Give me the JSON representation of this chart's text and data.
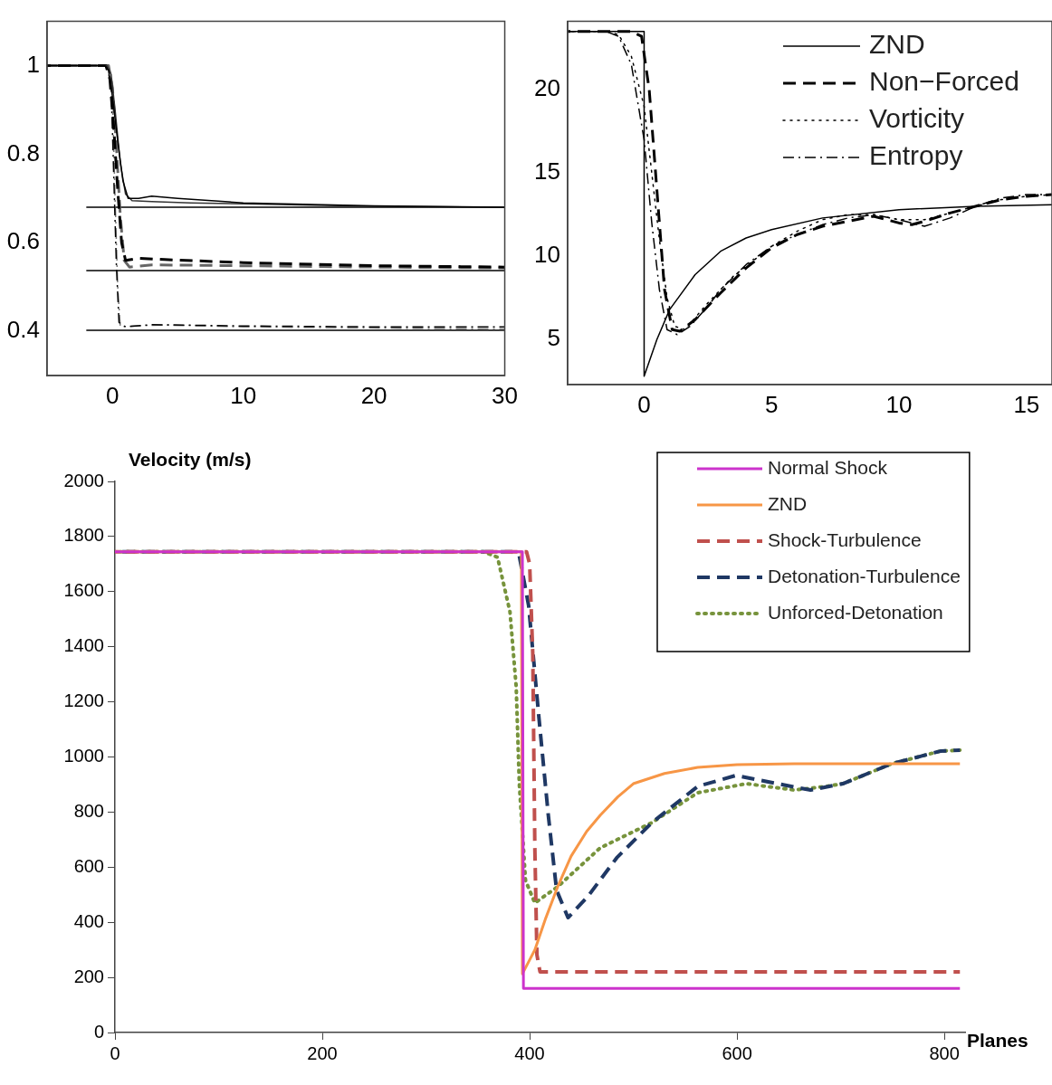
{
  "chart_data": [
    {
      "type": "line",
      "xlim": [
        -5,
        30
      ],
      "xticks": [
        0,
        10,
        20,
        30
      ],
      "ylim": [
        0.3,
        1.1
      ],
      "yticks": [
        0.4,
        0.6,
        0.8,
        1
      ],
      "series": [
        {
          "color": "#000000",
          "line_style": "solid",
          "x": [
            -5,
            -0.6,
            -0.3,
            0,
            0.4,
            0.8,
            1.2,
            2,
            3,
            5,
            10,
            20,
            30
          ],
          "values": [
            1,
            1,
            0.99,
            0.93,
            0.83,
            0.74,
            0.7,
            0.7,
            0.705,
            0.7,
            0.69,
            0.683,
            0.68
          ]
        },
        {
          "color": "#333333",
          "line_style": "solid",
          "x": [
            -5,
            -0.4,
            -0.1,
            0.2,
            0.6,
            1,
            1.5,
            3,
            6,
            10,
            20,
            30
          ],
          "values": [
            1,
            1,
            0.98,
            0.9,
            0.78,
            0.71,
            0.695,
            0.693,
            0.69,
            0.688,
            0.682,
            0.68
          ]
        },
        {
          "color": "#000000",
          "line_style": "dashed",
          "x": [
            -5,
            -0.5,
            -0.2,
            0.1,
            0.4,
            0.7,
            1,
            2,
            4,
            10,
            20,
            30
          ],
          "values": [
            1,
            1,
            0.97,
            0.86,
            0.72,
            0.6,
            0.56,
            0.565,
            0.562,
            0.555,
            0.548,
            0.545
          ]
        },
        {
          "color": "#666666",
          "line_style": "dashed",
          "x": [
            -5,
            -0.3,
            0,
            0.3,
            0.6,
            0.9,
            1.3,
            3,
            10,
            20,
            30
          ],
          "values": [
            1,
            1,
            0.95,
            0.82,
            0.66,
            0.56,
            0.545,
            0.55,
            0.548,
            0.545,
            0.543
          ]
        },
        {
          "color": "#000000",
          "line_style": "dashdot",
          "x": [
            -5,
            -0.4,
            -0.1,
            0.1,
            0.3,
            0.5,
            1,
            3,
            10,
            20,
            30
          ],
          "values": [
            1,
            1,
            0.95,
            0.75,
            0.55,
            0.42,
            0.41,
            0.415,
            0.412,
            0.41,
            0.41
          ]
        },
        {
          "color": "#777777",
          "line_style": "dashdot",
          "x": [
            -5,
            -0.3,
            0,
            0.2,
            0.4,
            0.6,
            1.5,
            4,
            10,
            30
          ],
          "values": [
            1,
            1,
            0.93,
            0.7,
            0.5,
            0.41,
            0.412,
            0.414,
            0.41,
            0.405
          ]
        },
        {
          "color": "#000000",
          "line_style": "solid",
          "x": [
            -2,
            30
          ],
          "values": [
            0.68,
            0.68
          ]
        },
        {
          "color": "#000000",
          "line_style": "solid",
          "x": [
            -2,
            30
          ],
          "values": [
            0.537,
            0.537
          ]
        },
        {
          "color": "#000000",
          "line_style": "solid",
          "x": [
            -2,
            30
          ],
          "values": [
            0.402,
            0.402
          ]
        }
      ]
    },
    {
      "type": "line",
      "xlim": [
        -3,
        16
      ],
      "xticks": [
        0,
        5,
        10,
        15
      ],
      "ylim": [
        2.3,
        24.1
      ],
      "yticks": [
        5,
        10,
        15,
        20
      ],
      "legend": "top right",
      "series": [
        {
          "name": "ZND",
          "color": "#000000",
          "line_style": "solid",
          "x": [
            -3,
            0,
            0,
            0.5,
            1,
            2,
            3,
            4,
            5,
            7,
            10,
            13,
            16
          ],
          "values": [
            23.5,
            23.5,
            2.8,
            5,
            6.8,
            8.9,
            10.3,
            11.1,
            11.6,
            12.3,
            12.8,
            13,
            13.1
          ]
        },
        {
          "name": "Non−Forced",
          "color": "#000000",
          "line_style": "dashed",
          "x": [
            -3,
            -0.5,
            -0.1,
            0.2,
            0.5,
            0.8,
            1.1,
            1.4,
            2,
            3,
            4,
            5,
            6,
            7,
            8,
            9,
            10,
            10.5,
            11,
            12,
            13,
            14,
            15,
            16
          ],
          "values": [
            23.5,
            23.5,
            23.2,
            20,
            14,
            8,
            5.6,
            5.5,
            6.2,
            7.8,
            9.3,
            10.5,
            11.3,
            11.8,
            12.1,
            12.4,
            12,
            11.9,
            12.1,
            12.6,
            13,
            13.4,
            13.6,
            13.7
          ]
        },
        {
          "name": "Vorticity",
          "color": "#000000",
          "line_style": "dotted",
          "x": [
            -3,
            -1.5,
            -1,
            -0.5,
            0,
            0.3,
            0.6,
            0.9,
            1.2,
            1.6,
            2.5,
            3.5,
            5,
            6,
            7,
            8,
            9,
            10,
            11,
            12,
            13,
            14,
            15,
            16
          ],
          "values": [
            23.5,
            23.5,
            23.3,
            22,
            19,
            15,
            11,
            7.5,
            5.8,
            5.6,
            7.2,
            8.8,
            10.6,
            11.5,
            12.2,
            12.5,
            12.5,
            12.2,
            12.2,
            12.6,
            13,
            13.4,
            13.6,
            13.7
          ]
        },
        {
          "name": "Entropy",
          "color": "#000000",
          "line_style": "dashdot",
          "x": [
            -3,
            -1.5,
            -1,
            -0.5,
            0,
            0.3,
            0.6,
            0.9,
            1.3,
            1.8,
            2.5,
            3,
            4,
            5,
            6,
            7,
            8,
            9,
            10,
            11,
            12,
            13,
            14,
            15,
            16
          ],
          "values": [
            23.5,
            23.5,
            23.2,
            21.5,
            17,
            12,
            8,
            5.6,
            5.3,
            5.8,
            7,
            8,
            9.5,
            10.6,
            11.3,
            11.9,
            12.3,
            12.5,
            12.2,
            11.8,
            12.3,
            13,
            13.5,
            13.7,
            13.7
          ]
        }
      ]
    },
    {
      "type": "line",
      "ylabel": "Velocity (m/s)",
      "xlabel": "Planes",
      "xlim": [
        0,
        820
      ],
      "xticks": [
        0,
        200,
        400,
        600,
        800
      ],
      "ylim": [
        0,
        2000
      ],
      "yticks": [
        0,
        200,
        400,
        600,
        800,
        1000,
        1200,
        1400,
        1600,
        1800,
        2000
      ],
      "legend": "top right",
      "series": [
        {
          "name": "Normal Shock",
          "color": "#cc33cc",
          "line_style": "solid",
          "x": [
            0,
            393,
            394,
            815
          ],
          "values": [
            1745,
            1745,
            160,
            160
          ]
        },
        {
          "name": "ZND",
          "color": "#f79646",
          "line_style": "solid",
          "x": [
            0,
            392,
            393,
            405,
            415,
            427,
            440,
            455,
            468,
            485,
            500,
            530,
            562,
            600,
            655,
            815
          ],
          "values": [
            1745,
            1745,
            213,
            300,
            410,
            529,
            640,
            730,
            788,
            855,
            903,
            940,
            962,
            972,
            975,
            975
          ]
        },
        {
          "name": "Shock-Turbulence",
          "color": "#c0504d",
          "line_style": "dashed",
          "x": [
            0,
            397,
            400,
            403,
            405,
            407,
            410,
            815
          ],
          "values": [
            1745,
            1745,
            1700,
            1373,
            670,
            282,
            220,
            220
          ]
        },
        {
          "name": "Detonation-Turbulence",
          "color": "#1f3864",
          "line_style": "dashed",
          "x": [
            0,
            383,
            390,
            399,
            409,
            418,
            426,
            437,
            456,
            484,
            518,
            562,
            599,
            639,
            671,
            702,
            749,
            796,
            815
          ],
          "values": [
            1745,
            1745,
            1730,
            1550,
            1140,
            788,
            516,
            417,
            493,
            634,
            762,
            893,
            933,
            903,
            880,
            903,
            975,
            1021,
            1025
          ]
        },
        {
          "name": "Unforced-Detonation",
          "color": "#77933c",
          "line_style": "dotted",
          "x": [
            0,
            355,
            369,
            381,
            387,
            390,
            396,
            405,
            427,
            468,
            518,
            562,
            609,
            655,
            686,
            702,
            749,
            796,
            815
          ],
          "values": [
            1745,
            1745,
            1725,
            1527,
            1255,
            903,
            552,
            470,
            529,
            670,
            762,
            870,
            903,
            880,
            893,
            903,
            975,
            1021,
            1025
          ]
        }
      ]
    }
  ]
}
